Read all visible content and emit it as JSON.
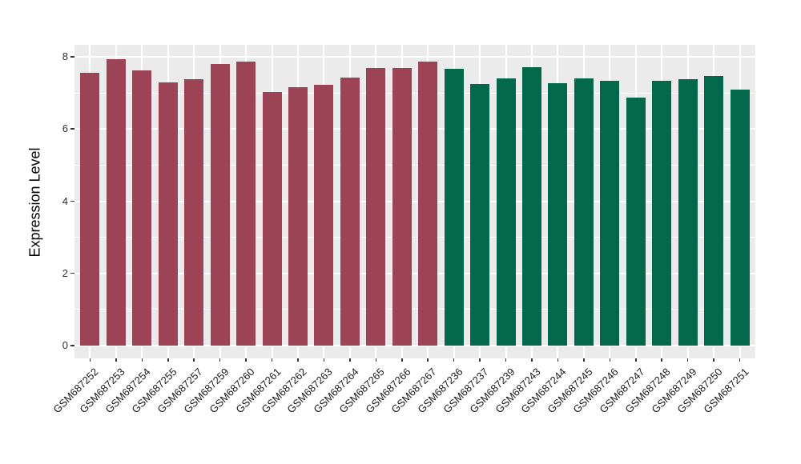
{
  "figure": {
    "background": "#FFFFFF",
    "panel_background": "#EBEBEB",
    "grid_color": "#FFFFFF",
    "tick_color": "#333333",
    "axis_text_color": "#1a1a1a"
  },
  "chart_data": {
    "type": "bar",
    "title": "",
    "xlabel": "",
    "ylabel": "Expression Level",
    "ylim": [
      0,
      8.4
    ],
    "yticks_display": [
      "0",
      "2",
      "4",
      "6",
      "8"
    ],
    "ytick_values": [
      0,
      2,
      4,
      6,
      8
    ],
    "minor_grid_values": [
      1,
      3,
      5,
      7
    ],
    "grid": true,
    "legend_position": "none",
    "categories": [
      "GSM687252",
      "GSM687253",
      "GSM687254",
      "GSM687255",
      "GSM687257",
      "GSM687259",
      "GSM687260",
      "GSM687261",
      "GSM687262",
      "GSM687263",
      "GSM687264",
      "GSM687265",
      "GSM687266",
      "GSM687267",
      "GSM687236",
      "GSM687237",
      "GSM687239",
      "GSM687243",
      "GSM687244",
      "GSM687245",
      "GSM687246",
      "GSM687247",
      "GSM687248",
      "GSM687249",
      "GSM687250",
      "GSM687251"
    ],
    "values": [
      7.55,
      7.93,
      7.63,
      7.3,
      7.38,
      7.79,
      7.87,
      7.03,
      7.16,
      7.22,
      7.43,
      7.7,
      7.7,
      7.86,
      7.66,
      7.25,
      7.41,
      7.71,
      7.26,
      7.41,
      7.33,
      6.88,
      7.34,
      7.37,
      7.47,
      7.1
    ],
    "group_of_bar": [
      "maroon",
      "maroon",
      "maroon",
      "maroon",
      "maroon",
      "maroon",
      "maroon",
      "maroon",
      "maroon",
      "maroon",
      "maroon",
      "maroon",
      "maroon",
      "maroon",
      "green",
      "green",
      "green",
      "green",
      "green",
      "green",
      "green",
      "green",
      "green",
      "green",
      "green",
      "green"
    ],
    "group_colors": {
      "maroon": "#9C4355",
      "green": "#04694A"
    }
  }
}
